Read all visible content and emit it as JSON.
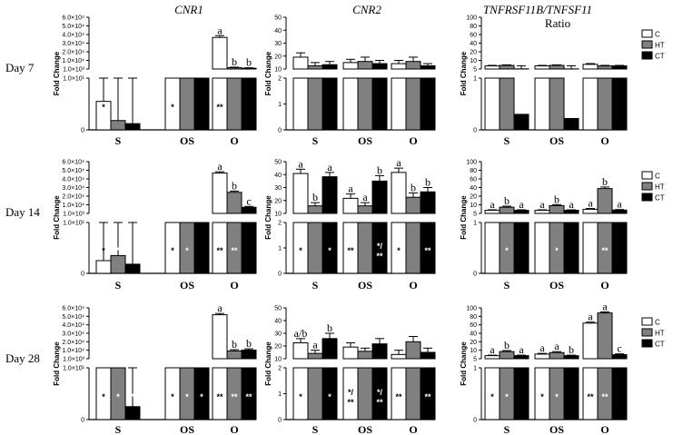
{
  "colors": {
    "C": "#ffffff",
    "HT": "#808080",
    "CT": "#000000",
    "axis": "#000000"
  },
  "figure": {
    "column_titles": [
      "CNR1",
      "CNR2",
      "TNFRSF11B/TNFSF11"
    ],
    "ratio_subtitle": "Ratio",
    "row_labels": [
      "Day 7",
      "Day 14",
      "Day 28"
    ],
    "ylabel": "Fold Change",
    "legend": [
      {
        "key": "C",
        "label": "C"
      },
      {
        "key": "HT",
        "label": "HT"
      },
      {
        "key": "CT",
        "label": "CT"
      }
    ]
  },
  "chart_data": [
    {
      "type": "bar",
      "gene": "CNR1",
      "day": "Day 7",
      "categories": [
        "S",
        "OS",
        "O"
      ],
      "ticks_top": [
        "6.0×10⁴",
        "5.0×10⁴",
        "4.0×10⁴",
        "3.0×10⁴",
        "2.0×10⁴",
        "1.0×10⁴",
        "1.0×10³"
      ],
      "ticks_bottom": [
        "1.0×10¹",
        "0"
      ],
      "top_range": [
        1000,
        60000
      ],
      "bottom_range": [
        0,
        10
      ],
      "series": [
        {
          "name": "C",
          "values": [
            5.5,
            180,
            37000
          ],
          "errors": [
            4.5,
            300,
            2000
          ]
        },
        {
          "name": "HT",
          "values": [
            1.8,
            200,
            2500
          ],
          "errors": [
            14,
            350,
            600
          ]
        },
        {
          "name": "CT",
          "values": [
            1.2,
            190,
            1900
          ],
          "errors": [
            15,
            300,
            500
          ]
        }
      ],
      "letters": [
        [
          "",
          "",
          ""
        ],
        [
          "",
          "",
          ""
        ],
        [
          "a",
          "b",
          "b"
        ]
      ],
      "asterisks": [
        [
          "*",
          "",
          ""
        ],
        [
          "*",
          "",
          ""
        ],
        [
          "**",
          "",
          ""
        ]
      ]
    },
    {
      "type": "bar",
      "gene": "CNR2",
      "day": "Day 7",
      "categories": [
        "S",
        "OS",
        "O"
      ],
      "ticks_top": [
        "50",
        "40",
        "30",
        "20",
        "10"
      ],
      "ticks_bottom": [
        "2",
        "1",
        "0"
      ],
      "top_range": [
        2,
        50
      ],
      "bottom_range": [
        0,
        2
      ],
      "series": [
        {
          "name": "C",
          "values": [
            13,
            8,
            7
          ],
          "errors": [
            4,
            3,
            3
          ]
        },
        {
          "name": "HT",
          "values": [
            5,
            9,
            9
          ],
          "errors": [
            3,
            4,
            4
          ]
        },
        {
          "name": "CT",
          "values": [
            6,
            7,
            5
          ],
          "errors": [
            3,
            3,
            2
          ]
        }
      ],
      "letters": [
        [
          "",
          "",
          ""
        ],
        [
          "",
          "",
          ""
        ],
        [
          "",
          "",
          ""
        ]
      ],
      "asterisks": [
        [
          "",
          "",
          ""
        ],
        [
          "",
          "",
          ""
        ],
        [
          "",
          "",
          ""
        ]
      ]
    },
    {
      "type": "bar",
      "gene": "TNFRSF11B/TNFSF11",
      "day": "Day 7",
      "categories": [
        "S",
        "OS",
        "O"
      ],
      "ticks_top": [
        "100",
        "80",
        "60",
        "40",
        "20",
        "10",
        "5"
      ],
      "ticks_bottom": [
        "1",
        "0"
      ],
      "top_range": [
        0,
        100
      ],
      "bottom_range": [
        0,
        1
      ],
      "series": [
        {
          "name": "C",
          "values": [
            6,
            6,
            9
          ],
          "errors": [
            1,
            1,
            1.5
          ]
        },
        {
          "name": "HT",
          "values": [
            7,
            7,
            6
          ],
          "errors": [
            1,
            1,
            1
          ]
        },
        {
          "name": "CT",
          "values": [
            0.3,
            0.22,
            6
          ],
          "errors": [
            6,
            6,
            1
          ]
        }
      ],
      "letters": [
        [
          "",
          "",
          ""
        ],
        [
          "",
          "",
          ""
        ],
        [
          "",
          "",
          ""
        ]
      ],
      "asterisks": [
        [
          "",
          "",
          ""
        ],
        [
          "",
          "",
          ""
        ],
        [
          "",
          "",
          ""
        ]
      ]
    },
    {
      "type": "bar",
      "gene": "CNR1",
      "day": "Day 14",
      "categories": [
        "S",
        "OS",
        "O"
      ],
      "ticks_top": [
        "6.0×10⁴",
        "5.0×10⁴",
        "4.0×10⁴",
        "3.0×10⁴",
        "2.0×10⁴",
        "1.0×10⁴",
        "1.0×10³"
      ],
      "ticks_bottom": [
        "1.0×10¹",
        "0"
      ],
      "top_range": [
        1000,
        60000
      ],
      "bottom_range": [
        0,
        10
      ],
      "series": [
        {
          "name": "C",
          "values": [
            2.5,
            150,
            47000
          ],
          "errors": [
            14,
            300,
            1500
          ]
        },
        {
          "name": "HT",
          "values": [
            3.5,
            160,
            25000
          ],
          "errors": [
            14,
            300,
            1500
          ]
        },
        {
          "name": "CT",
          "values": [
            1.8,
            170,
            8000
          ],
          "errors": [
            14,
            300,
            1000
          ]
        }
      ],
      "letters": [
        [
          "",
          "",
          ""
        ],
        [
          "",
          "",
          ""
        ],
        [
          "a",
          "b",
          "c"
        ]
      ],
      "asterisks": [
        [
          "*",
          "*",
          ""
        ],
        [
          "*",
          "*",
          ""
        ],
        [
          "**",
          "**",
          ""
        ]
      ]
    },
    {
      "type": "bar",
      "gene": "CNR2",
      "day": "Day 14",
      "categories": [
        "S",
        "OS",
        "O"
      ],
      "ticks_top": [
        "50",
        "40",
        "30",
        "20",
        "10"
      ],
      "ticks_bottom": [
        "2",
        "1",
        "0"
      ],
      "top_range": [
        2,
        50
      ],
      "bottom_range": [
        0,
        2
      ],
      "series": [
        {
          "name": "C",
          "values": [
            39,
            16,
            40
          ],
          "errors": [
            4,
            4,
            4
          ]
        },
        {
          "name": "HT",
          "values": [
            9,
            9,
            17
          ],
          "errors": [
            3,
            3,
            4
          ]
        },
        {
          "name": "CT",
          "values": [
            36,
            32,
            22
          ],
          "errors": [
            4,
            5,
            4
          ]
        }
      ],
      "letters": [
        [
          "a",
          "b",
          "a"
        ],
        [
          "a",
          "a",
          "b"
        ],
        [
          "a",
          "b",
          "b"
        ]
      ],
      "asterisks": [
        [
          "*",
          "",
          "*"
        ],
        [
          "**",
          "",
          "*/ **"
        ],
        [
          "*",
          "",
          "**"
        ]
      ]
    },
    {
      "type": "bar",
      "gene": "TNFRSF11B/TNFSF11",
      "day": "Day 14",
      "categories": [
        "S",
        "OS",
        "O"
      ],
      "ticks_top": [
        "100",
        "80",
        "60",
        "40",
        "20",
        "10",
        "5"
      ],
      "ticks_bottom": [
        "1",
        "0"
      ],
      "top_range": [
        0,
        100
      ],
      "bottom_range": [
        0,
        1
      ],
      "series": [
        {
          "name": "C",
          "values": [
            6,
            6,
            8
          ],
          "errors": [
            1,
            1,
            1.5
          ]
        },
        {
          "name": "HT",
          "values": [
            12,
            15,
            48
          ],
          "errors": [
            2,
            2,
            3
          ]
        },
        {
          "name": "CT",
          "values": [
            6,
            6,
            6.5
          ],
          "errors": [
            1,
            1,
            1
          ]
        }
      ],
      "letters": [
        [
          "a",
          "b",
          "a"
        ],
        [
          "a",
          "b",
          "a"
        ],
        [
          "a",
          "b",
          "a"
        ]
      ],
      "asterisks": [
        [
          "",
          "*",
          ""
        ],
        [
          "",
          "*",
          ""
        ],
        [
          "",
          "**",
          ""
        ]
      ]
    },
    {
      "type": "bar",
      "gene": "CNR1",
      "day": "Day 28",
      "categories": [
        "S",
        "OS",
        "O"
      ],
      "ticks_top": [
        "6.0×10⁴",
        "5.0×10⁴",
        "4.0×10⁴",
        "3.0×10⁴",
        "2.0×10⁴",
        "1.0×10⁴",
        "1.0×10³"
      ],
      "ticks_bottom": [
        "1.0×10¹",
        "0"
      ],
      "top_range": [
        1000,
        60000
      ],
      "bottom_range": [
        0,
        10
      ],
      "series": [
        {
          "name": "C",
          "values": [
            250,
            250,
            52000
          ],
          "errors": [
            300,
            300,
            1500
          ]
        },
        {
          "name": "HT",
          "values": [
            250,
            250,
            10000
          ],
          "errors": [
            300,
            300,
            1500
          ]
        },
        {
          "name": "CT",
          "values": [
            2.5,
            250,
            11000
          ],
          "errors": [
            300,
            300,
            1500
          ]
        }
      ],
      "letters": [
        [
          "",
          "",
          ""
        ],
        [
          "",
          "",
          ""
        ],
        [
          "a",
          "b",
          "b"
        ]
      ],
      "asterisks": [
        [
          "*",
          "*",
          "*"
        ],
        [
          "*",
          "*",
          "*"
        ],
        [
          "**",
          "**",
          "**"
        ]
      ]
    },
    {
      "type": "bar",
      "gene": "CNR2",
      "day": "Day 28",
      "categories": [
        "S",
        "OS",
        "O"
      ],
      "ticks_top": [
        "50",
        "40",
        "30",
        "20",
        "10"
      ],
      "ticks_bottom": [
        "2",
        "1",
        "0"
      ],
      "top_range": [
        2,
        50
      ],
      "bottom_range": [
        0,
        2
      ],
      "series": [
        {
          "name": "C",
          "values": [
            17,
            13,
            6
          ],
          "errors": [
            4,
            4,
            4
          ]
        },
        {
          "name": "HT",
          "values": [
            7,
            9,
            18
          ],
          "errors": [
            3,
            3,
            5
          ]
        },
        {
          "name": "CT",
          "values": [
            21,
            16,
            8
          ],
          "errors": [
            5,
            5,
            4
          ]
        }
      ],
      "letters": [
        [
          "a/b",
          "a",
          "b"
        ],
        [
          "",
          "",
          ""
        ],
        [
          "",
          "",
          ""
        ]
      ],
      "asterisks": [
        [
          "*",
          "",
          "*"
        ],
        [
          "*/ **",
          "",
          "*/ **"
        ],
        [
          "**",
          "",
          "**"
        ]
      ]
    },
    {
      "type": "bar",
      "gene": "TNFRSF11B/TNFSF11",
      "day": "Day 28",
      "categories": [
        "S",
        "OS",
        "O"
      ],
      "ticks_top": [
        "100",
        "80",
        "60",
        "40",
        "20",
        "10",
        "5"
      ],
      "ticks_bottom": [
        "1",
        "0"
      ],
      "top_range": [
        0,
        100
      ],
      "bottom_range": [
        0,
        1
      ],
      "series": [
        {
          "name": "C",
          "values": [
            6,
            9,
            70
          ],
          "errors": [
            1,
            1.5,
            2
          ]
        },
        {
          "name": "HT",
          "values": [
            14,
            12,
            90
          ],
          "errors": [
            2,
            2,
            2
          ]
        },
        {
          "name": "CT",
          "values": [
            6,
            6,
            8
          ],
          "errors": [
            1,
            1,
            1.5
          ]
        }
      ],
      "letters": [
        [
          "a",
          "b",
          "a"
        ],
        [
          "a",
          "a",
          "b"
        ],
        [
          "a",
          "a",
          "c"
        ]
      ],
      "asterisks": [
        [
          "*",
          "*",
          ""
        ],
        [
          "*",
          "*",
          ""
        ],
        [
          "**",
          "**",
          ""
        ]
      ]
    }
  ]
}
